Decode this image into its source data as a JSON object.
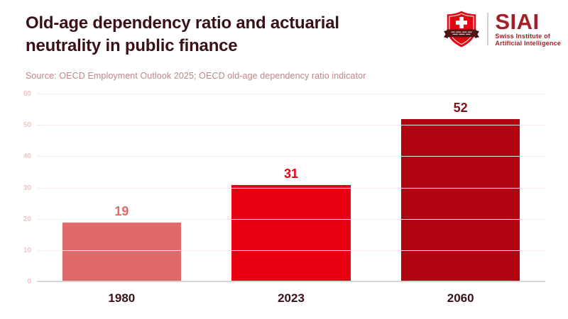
{
  "header": {
    "title_line1": "Old-age dependency ratio and actuarial",
    "title_line2": "neutrality in public finance",
    "source": "Source: OECD Employment Outlook 2025; OECD old-age dependency ratio indicator"
  },
  "logo": {
    "acronym": "SIAI",
    "subtitle_line1": "Swiss Institute of",
    "subtitle_line2": "Artificial Intelligence",
    "shield_color": "#e30613",
    "ribbon_color": "#511514",
    "text_color": "#a32026"
  },
  "chart_data": {
    "type": "bar",
    "title": "Old-age dependency ratio and actuarial neutrality in public finance",
    "categories": [
      "1980",
      "2023",
      "2060"
    ],
    "values": [
      19,
      31,
      52
    ],
    "bar_colors": [
      "#e06a6a",
      "#e60012",
      "#b00511"
    ],
    "value_label_colors": [
      "#e06a6a",
      "#e60012",
      "#7f1116"
    ],
    "xlabel": "",
    "ylabel": "",
    "ylim": [
      0,
      60
    ],
    "yticks": [
      0,
      10,
      20,
      30,
      40,
      50,
      60
    ],
    "grid": true,
    "legend": "none",
    "gridline_color": "#fbe9e9",
    "tick_label_color": "#f2c4c4",
    "axis_line_color": "#d8d8d8",
    "category_label_color": "#3a1118"
  },
  "colors": {
    "background": "#ffffff",
    "title": "#3a1118",
    "source": "#c08686"
  }
}
